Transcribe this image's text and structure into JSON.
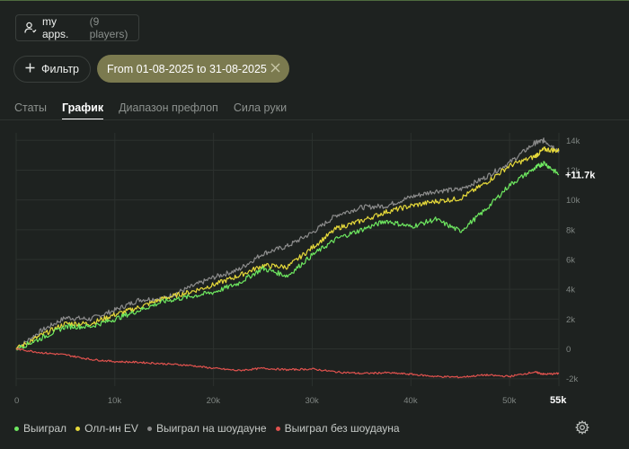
{
  "header": {
    "players_label": "my apps.",
    "players_count": "(9 players)"
  },
  "filters": {
    "filter_label": "Фильтр",
    "date_range": "From 01-08-2025 to 31-08-2025"
  },
  "tabs": [
    {
      "label": "Статы",
      "active": false
    },
    {
      "label": "График",
      "active": true
    },
    {
      "label": "Диапазон префлоп",
      "active": false
    },
    {
      "label": "Сила руки",
      "active": false
    }
  ],
  "chart_data": {
    "type": "line",
    "title": "",
    "xlabel": "",
    "ylabel": "",
    "xlim": [
      0,
      55000
    ],
    "ylim": [
      -2500,
      14500
    ],
    "x_ticks": [
      0,
      10000,
      20000,
      30000,
      40000,
      50000
    ],
    "x_tick_labels": [
      "0",
      "10k",
      "20k",
      "30k",
      "40k",
      "50k"
    ],
    "x_end_label": "55k",
    "y_ticks": [
      -2000,
      0,
      2000,
      4000,
      6000,
      8000,
      10000,
      12000,
      14000
    ],
    "y_tick_labels": [
      "-2k",
      "0",
      "2k",
      "4k",
      "6k",
      "8k",
      "10k",
      "12k",
      "14k"
    ],
    "end_value_label": "+11.7k",
    "end_value": 11700,
    "x": [
      0,
      2500,
      5000,
      7500,
      10000,
      12500,
      15000,
      17500,
      20000,
      22500,
      25000,
      27500,
      30000,
      32500,
      35000,
      37500,
      40000,
      42500,
      45000,
      47500,
      50000,
      52500,
      53500,
      55000
    ],
    "series": [
      {
        "name": "Выиграл на шоудауне",
        "color": "#8c8c8c",
        "values": [
          0,
          1200,
          2100,
          2000,
          2600,
          3300,
          3400,
          4100,
          4800,
          5300,
          6400,
          6900,
          7800,
          9000,
          9500,
          9600,
          10200,
          10600,
          10700,
          11500,
          12500,
          13800,
          14000,
          13300
        ]
      },
      {
        "name": "Олл-ин EV",
        "color": "#e6d93a",
        "values": [
          0,
          900,
          1700,
          1700,
          2300,
          2800,
          3400,
          3800,
          4300,
          4900,
          5600,
          5500,
          6800,
          8100,
          8600,
          9200,
          9600,
          9900,
          10100,
          11100,
          12300,
          12900,
          13400,
          13300
        ]
      },
      {
        "name": "Выиграл",
        "color": "#6ee860",
        "values": [
          0,
          700,
          1500,
          1500,
          2000,
          2600,
          3200,
          3500,
          3800,
          4400,
          5400,
          4900,
          6300,
          7400,
          8000,
          8600,
          8200,
          8700,
          7900,
          9300,
          11000,
          12100,
          12500,
          11700
        ]
      },
      {
        "name": "Выиграл без шоудауна",
        "color": "#e0524e",
        "values": [
          0,
          -250,
          -400,
          -700,
          -850,
          -900,
          -1000,
          -1100,
          -1300,
          -1450,
          -1300,
          -1400,
          -1350,
          -1550,
          -1650,
          -1600,
          -1700,
          -1850,
          -1900,
          -1750,
          -1850,
          -1550,
          -1700,
          -1650
        ]
      }
    ]
  },
  "legend": [
    {
      "label": "Выиграл",
      "color": "#6ee860"
    },
    {
      "label": "Олл-ин EV",
      "color": "#e6d93a"
    },
    {
      "label": "Выиграл на шоудауне",
      "color": "#8c8c8c"
    },
    {
      "label": "Выиграл без шоудауна",
      "color": "#e0524e"
    }
  ]
}
